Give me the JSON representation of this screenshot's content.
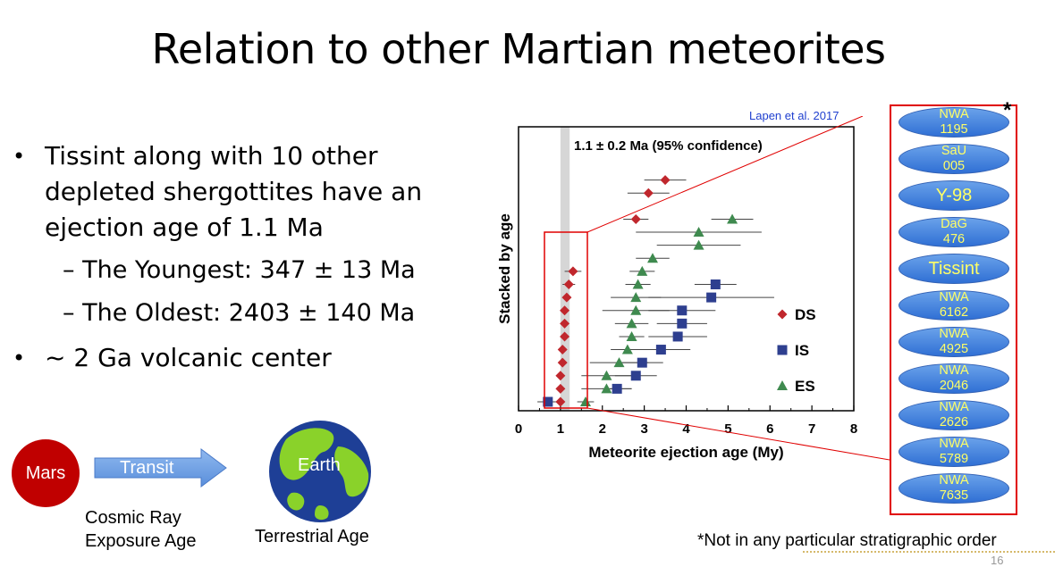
{
  "slide": {
    "title": "Relation to other Martian meteorites",
    "page_number": "16"
  },
  "bullets": [
    {
      "text_lines": [
        "Tissint along with 10 other",
        "depleted shergottites have an",
        "ejection age of 1.1 Ma"
      ]
    },
    {
      "sub": [
        "– The Youngest: 347 ± 13 Ma",
        "– The Oldest: 2403 ± 140 Ma"
      ]
    },
    {
      "text_lines": [
        "~ 2 Ga volcanic center"
      ]
    }
  ],
  "diagram": {
    "mars_label": "Mars",
    "transit_label": "Transit",
    "earth_label": "Earth",
    "cosmic_ray_lines": [
      "Cosmic Ray",
      "Exposure Age"
    ],
    "terrestrial_label": "Terrestrial Age",
    "colors": {
      "mars": "#c00000",
      "arrow": "#6a9ee0",
      "ocean": "#1e3f96",
      "land": "#8ad22a"
    }
  },
  "chart_citation": "Lapen et al. 2017",
  "chart_data": {
    "type": "scatter",
    "title": "",
    "annotation": "1.1 ± 0.2 Ma (95% confidence)",
    "xlabel": "Meteorite ejection age (My)",
    "ylabel": "Stacked by age",
    "xlim": [
      0,
      8
    ],
    "x_ticks": [
      "0",
      "1",
      "2",
      "3",
      "4",
      "5",
      "6",
      "7",
      "8"
    ],
    "shaded_band": [
      1.0,
      1.22
    ],
    "legend": {
      "placement": "right",
      "entries": [
        "DS",
        "IS",
        "ES"
      ]
    },
    "series": [
      {
        "name": "DS",
        "marker": "diamond",
        "color": "#c0272d",
        "points": [
          {
            "x": 1.0,
            "rank": 1,
            "err": 0.1
          },
          {
            "x": 1.0,
            "rank": 2,
            "err": 0.1
          },
          {
            "x": 1.0,
            "rank": 3,
            "err": 0.1
          },
          {
            "x": 1.05,
            "rank": 4,
            "err": 0.1
          },
          {
            "x": 1.05,
            "rank": 5,
            "err": 0.1
          },
          {
            "x": 1.1,
            "rank": 6,
            "err": 0.1
          },
          {
            "x": 1.1,
            "rank": 7,
            "err": 0.1
          },
          {
            "x": 1.1,
            "rank": 8,
            "err": 0.1
          },
          {
            "x": 1.15,
            "rank": 9,
            "err": 0.1
          },
          {
            "x": 1.2,
            "rank": 10,
            "err": 0.15
          },
          {
            "x": 1.3,
            "rank": 11,
            "err": 0.2
          },
          {
            "x": 2.8,
            "rank": 15,
            "err": 0.3
          },
          {
            "x": 3.1,
            "rank": 17,
            "err": 0.5
          },
          {
            "x": 3.5,
            "rank": 18,
            "err": 0.5
          }
        ]
      },
      {
        "name": "IS",
        "marker": "square",
        "color": "#2e3f8f",
        "points": [
          {
            "x": 0.7,
            "rank": 1,
            "err": 0.25
          },
          {
            "x": 2.35,
            "rank": 2,
            "err": 0.35
          },
          {
            "x": 2.8,
            "rank": 3,
            "err": 0.5
          },
          {
            "x": 2.95,
            "rank": 4,
            "err": 0.5
          },
          {
            "x": 3.4,
            "rank": 5,
            "err": 0.7
          },
          {
            "x": 3.8,
            "rank": 6,
            "err": 0.7
          },
          {
            "x": 3.9,
            "rank": 7,
            "err": 0.6
          },
          {
            "x": 3.9,
            "rank": 8,
            "err": 0.8
          },
          {
            "x": 4.6,
            "rank": 9,
            "err": 1.5
          },
          {
            "x": 4.7,
            "rank": 10,
            "err": 0.5
          }
        ]
      },
      {
        "name": "ES",
        "marker": "triangle",
        "color": "#3f8a4f",
        "points": [
          {
            "x": 1.6,
            "rank": 1,
            "err": 0.2
          },
          {
            "x": 2.1,
            "rank": 2,
            "err": 0.6
          },
          {
            "x": 2.1,
            "rank": 3,
            "err": 0.6
          },
          {
            "x": 2.4,
            "rank": 4,
            "err": 0.7
          },
          {
            "x": 2.6,
            "rank": 5,
            "err": 0.4
          },
          {
            "x": 2.7,
            "rank": 6,
            "err": 0.3
          },
          {
            "x": 2.7,
            "rank": 7,
            "err": 0.4
          },
          {
            "x": 2.8,
            "rank": 8,
            "err": 0.8
          },
          {
            "x": 2.8,
            "rank": 9,
            "err": 0.6
          },
          {
            "x": 2.85,
            "rank": 10,
            "err": 0.3
          },
          {
            "x": 2.95,
            "rank": 11,
            "err": 0.3
          },
          {
            "x": 3.2,
            "rank": 12,
            "err": 0.4
          },
          {
            "x": 4.3,
            "rank": 13,
            "err": 1.0
          },
          {
            "x": 4.3,
            "rank": 14,
            "err": 1.5
          },
          {
            "x": 5.1,
            "rank": 15,
            "err": 0.5
          }
        ]
      }
    ]
  },
  "meteorite_list": [
    {
      "label": "NWA 1195"
    },
    {
      "label": "SaU 005"
    },
    {
      "label": "Y-98",
      "big": true
    },
    {
      "label": "DaG 476"
    },
    {
      "label": "Tissint",
      "big": true
    },
    {
      "label": "NWA 6162"
    },
    {
      "label": "NWA 4925"
    },
    {
      "label": "NWA 2046"
    },
    {
      "label": "NWA 2626"
    },
    {
      "label": "NWA 5789"
    },
    {
      "label": "NWA 7635"
    }
  ],
  "list_marker": "*",
  "footnote": "*Not in any particular stratigraphic order"
}
